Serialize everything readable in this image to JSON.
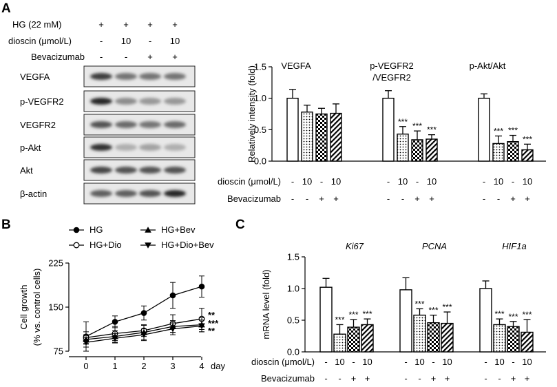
{
  "panel_labels": {
    "a": "A",
    "b": "B",
    "c": "C"
  },
  "blot": {
    "conditions": [
      {
        "label": "HG (22 mM)",
        "values": [
          "+",
          "+",
          "+",
          "+"
        ]
      },
      {
        "label": "dioscin (μmol/L)",
        "values": [
          "-",
          "10",
          "-",
          "10"
        ]
      },
      {
        "label": "Bevacizumab",
        "values": [
          "-",
          "-",
          "+",
          "+"
        ]
      }
    ],
    "proteins": [
      "VEGFA",
      "p-VEGFR2",
      "VEGFR2",
      "p-Akt",
      "Akt",
      "β-actin"
    ],
    "band_intensity": [
      [
        0.85,
        0.6,
        0.6,
        0.6
      ],
      [
        0.95,
        0.5,
        0.45,
        0.45
      ],
      [
        0.75,
        0.65,
        0.6,
        0.65
      ],
      [
        0.9,
        0.35,
        0.4,
        0.35
      ],
      [
        0.8,
        0.75,
        0.75,
        0.75
      ],
      [
        0.7,
        0.7,
        0.75,
        0.95
      ]
    ]
  },
  "treatment_rows": {
    "dioscin_label": "dioscin (μmol/L)",
    "dioscin_values": [
      "-",
      "10",
      "-",
      "10"
    ],
    "bev_label": "Bevacizumab",
    "bev_values": [
      "-",
      "-",
      "+",
      "+"
    ]
  },
  "bar_patterns": [
    "open",
    "dots",
    "checker",
    "hatch"
  ],
  "chart_data": [
    {
      "type": "bar",
      "panel": "A",
      "ylabel": "Relatively intensity (fold)",
      "ylim": [
        0,
        1.5
      ],
      "yticks": [
        "0.0",
        "0.5",
        "1.0",
        "1.5"
      ],
      "groups": [
        {
          "name": "VEGFA",
          "values": [
            1.0,
            0.78,
            0.75,
            0.76
          ],
          "errors": [
            0.14,
            0.11,
            0.09,
            0.15
          ],
          "sig": [
            "",
            "",
            "",
            ""
          ]
        },
        {
          "name": "p-VEGFR2\n/VEGFR2",
          "values": [
            1.0,
            0.43,
            0.34,
            0.35
          ],
          "errors": [
            0.12,
            0.12,
            0.14,
            0.07
          ],
          "sig": [
            "",
            "***",
            "***",
            "***"
          ]
        },
        {
          "name": "p-Akt/Akt",
          "values": [
            1.0,
            0.28,
            0.31,
            0.18
          ],
          "errors": [
            0.07,
            0.12,
            0.1,
            0.09
          ],
          "sig": [
            "",
            "***",
            "***",
            "***"
          ]
        }
      ]
    },
    {
      "type": "line",
      "panel": "B",
      "ylabel": "Cell growth",
      "ylabel2": "(% vs. control cells)",
      "xlabel": "day",
      "x": [
        0,
        1,
        2,
        3,
        4
      ],
      "xticks": [
        "0",
        "1",
        "2",
        "3",
        "4"
      ],
      "ylim": [
        75,
        225
      ],
      "yticks": [
        "75",
        "150",
        "225"
      ],
      "series": [
        {
          "name": "HG",
          "marker": "filled-circle",
          "values": [
            100,
            125,
            140,
            170,
            185
          ],
          "errors": [
            25,
            10,
            12,
            22,
            18
          ],
          "sig": ""
        },
        {
          "name": "HG+Dio",
          "marker": "open-circle",
          "values": [
            98,
            105,
            110,
            122,
            130
          ],
          "errors": [
            10,
            12,
            10,
            15,
            18
          ],
          "sig": "**"
        },
        {
          "name": "HG+Bev",
          "marker": "up-triangle",
          "values": [
            95,
            100,
            107,
            117,
            120
          ],
          "errors": [
            8,
            10,
            12,
            10,
            12
          ],
          "sig": "***"
        },
        {
          "name": "HG+Dio+Bev",
          "marker": "down-triangle",
          "values": [
            90,
            97,
            103,
            113,
            118
          ],
          "errors": [
            8,
            8,
            10,
            10,
            10
          ],
          "sig": "**"
        }
      ]
    },
    {
      "type": "bar",
      "panel": "C",
      "ylabel": "mRNA level (fold)",
      "ylim": [
        0,
        1.5
      ],
      "yticks": [
        "0.0",
        "0.5",
        "1.0",
        "1.5"
      ],
      "groups": [
        {
          "name": "Ki67",
          "values": [
            1.02,
            0.28,
            0.39,
            0.43
          ],
          "errors": [
            0.14,
            0.15,
            0.12,
            0.09
          ],
          "sig": [
            "",
            "***",
            "***",
            "***"
          ]
        },
        {
          "name": "PCNA",
          "values": [
            0.98,
            0.58,
            0.46,
            0.45
          ],
          "errors": [
            0.19,
            0.1,
            0.12,
            0.18
          ],
          "sig": [
            "",
            "***",
            "***",
            "***"
          ]
        },
        {
          "name": "HIF1a",
          "values": [
            1.0,
            0.43,
            0.4,
            0.31
          ],
          "errors": [
            0.12,
            0.09,
            0.08,
            0.2
          ],
          "sig": [
            "",
            "***",
            "***",
            "***"
          ]
        }
      ]
    }
  ]
}
